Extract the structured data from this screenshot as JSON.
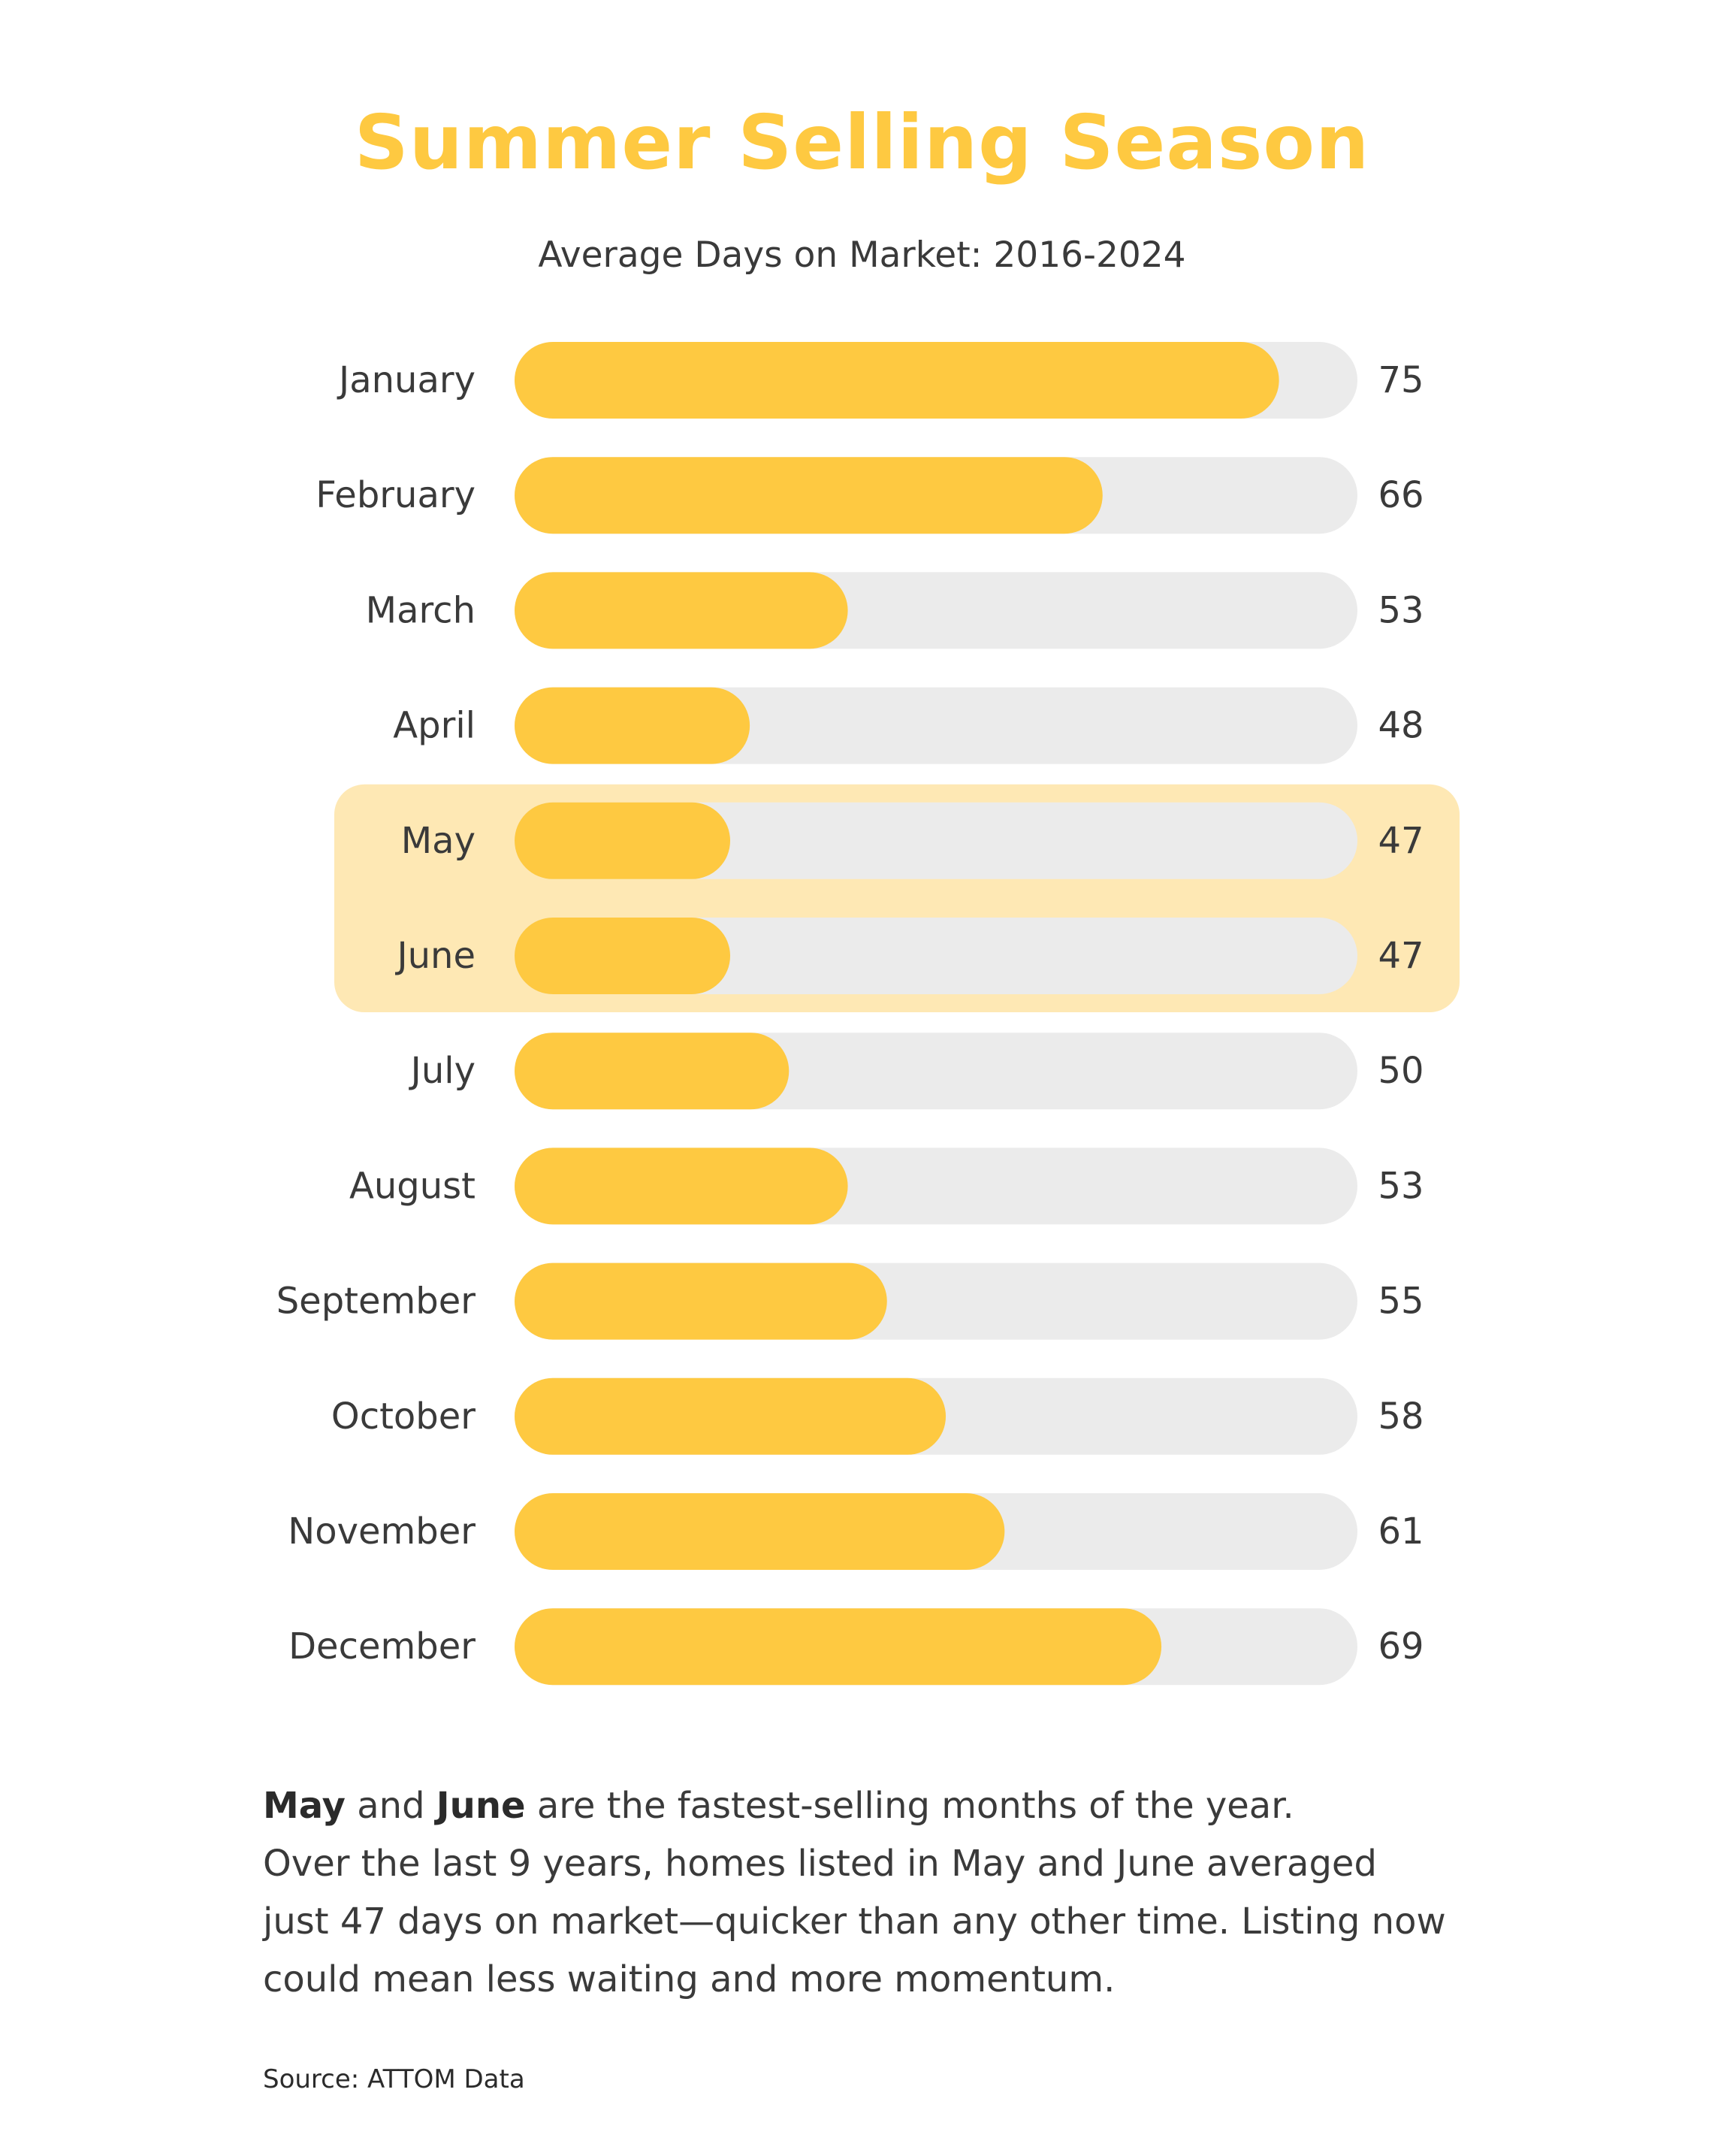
{
  "title": "Summer Selling Season",
  "subtitle": "Average Days on Market: 2016-2024",
  "colors": {
    "bar_fill": "#fec941",
    "bar_track": "#ebebeb",
    "highlight_band": "#fee8b4",
    "title": "#fec941",
    "text": "#3a3a3a"
  },
  "chart_data": {
    "type": "bar",
    "orientation": "horizontal",
    "title": "Summer Selling Season",
    "subtitle": "Average Days on Market: 2016-2024",
    "categories": [
      "January",
      "February",
      "March",
      "April",
      "May",
      "June",
      "July",
      "August",
      "September",
      "October",
      "November",
      "December"
    ],
    "values": [
      75,
      66,
      53,
      48,
      47,
      47,
      50,
      53,
      55,
      58,
      61,
      69
    ],
    "value_labels": [
      "75",
      "66",
      "53",
      "48",
      "47",
      "47",
      "50",
      "53",
      "55",
      "58",
      "61",
      "69"
    ],
    "highlighted_categories": [
      "May",
      "June"
    ],
    "xlim": [
      36,
      79
    ],
    "grid": false,
    "legend": "none"
  },
  "body": {
    "line1_bold_1": "May",
    "line1_text_1": " and ",
    "line1_bold_2": "June",
    "line1_text_2": " are the fastest-selling months of the year.",
    "line2": " Over the last 9 years, homes listed in May and June averaged",
    "line3": "just 47 days on market—quicker than any other time. Listing now",
    "line4": "could mean less waiting and more momentum."
  },
  "source": "Source: ATTOM Data"
}
